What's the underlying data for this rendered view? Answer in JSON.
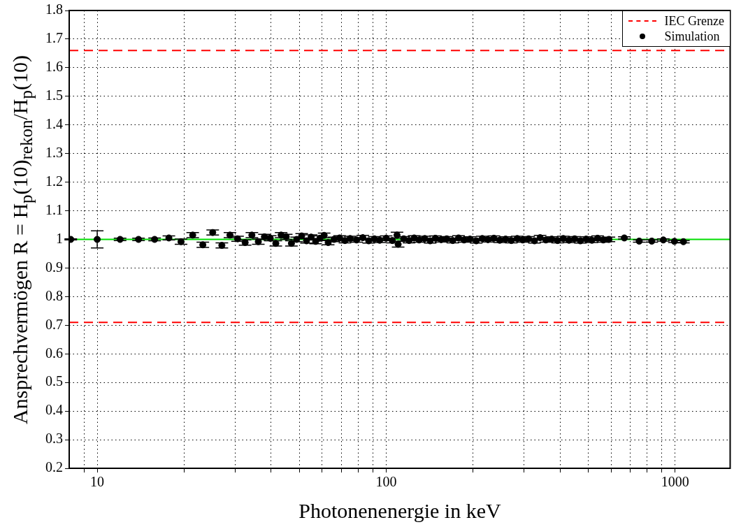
{
  "chart_data": {
    "type": "scatter",
    "xlabel": "Photonenenergie in keV",
    "ylabel": "Ansprechvermögen R = H$_{p}$(10)$_{rekon}$/H$_{p}$(10)",
    "log": "x",
    "grid": true,
    "legend": "top right",
    "marker": "circle",
    "xlim": [
      8,
      1550
    ],
    "xticks": [
      {
        "value": 9,
        "label": null
      },
      10,
      {
        "value": 20,
        "label": null
      },
      {
        "value": 30,
        "label": null
      },
      {
        "value": 40,
        "label": null
      },
      {
        "value": 50,
        "label": null
      },
      {
        "value": 60,
        "label": null
      },
      {
        "value": 70,
        "label": null
      },
      {
        "value": 80,
        "label": null
      },
      {
        "value": 90,
        "label": null
      },
      100,
      {
        "value": 200,
        "label": null
      },
      {
        "value": 300,
        "label": null
      },
      {
        "value": 400,
        "label": null
      },
      {
        "value": 500,
        "label": null
      },
      {
        "value": 600,
        "label": null
      },
      {
        "value": 700,
        "label": null
      },
      {
        "value": 800,
        "label": null
      },
      {
        "value": 900,
        "label": null
      },
      1000
    ],
    "ylim": [
      0.2,
      1.8
    ],
    "yticks": [
      0.2,
      0.3,
      0.4,
      0.5,
      0.6,
      0.7,
      0.8,
      0.9,
      1,
      1.1,
      1.2,
      1.3,
      1.4,
      1.5,
      1.6,
      1.7,
      1.8
    ],
    "ref_lines": [
      {
        "axis": "y",
        "value": 1.66,
        "label": "IEC Grenze",
        "color": "#ff0000",
        "line_style": "dashed"
      },
      {
        "axis": "y",
        "value": 0.71,
        "color": "#ff0000",
        "line_style": "dashed"
      },
      {
        "axis": "y",
        "value": 1,
        "color": "#00dd00",
        "line_style": "solid"
      }
    ],
    "series": [
      {
        "name": "Simulation",
        "color": "#000000",
        "x": [
          8.1,
          10,
          12,
          13.9,
          15.8,
          17.7,
          19.5,
          21.4,
          23.2,
          25.1,
          27,
          28.8,
          30.6,
          32.5,
          34.3,
          36.1,
          37.9,
          39.7,
          41.5,
          43.3,
          45.1,
          47,
          49,
          51,
          53,
          55,
          57,
          59,
          61,
          63,
          66,
          69,
          72,
          75,
          79,
          83,
          87,
          91,
          95,
          100,
          105,
          109,
          110,
          115,
          120,
          125,
          130,
          136,
          142,
          148,
          155,
          162,
          170,
          178,
          186,
          195,
          205,
          215,
          225,
          236,
          247,
          259,
          271,
          284,
          297,
          311,
          326,
          341,
          357,
          374,
          392,
          410,
          429,
          449,
          470,
          492,
          515,
          539,
          564,
          590,
          667,
          751,
          830,
          910,
          994,
          1068
        ],
        "values": [
          1,
          1,
          1,
          1,
          1,
          1.005,
          0.992,
          1.015,
          0.981,
          1.024,
          0.979,
          1.015,
          1.002,
          0.989,
          1.015,
          0.992,
          1.009,
          1.004,
          0.986,
          1.015,
          1.009,
          0.986,
          1,
          1.012,
          0.995,
          1.008,
          0.993,
          1.004,
          1.014,
          0.989,
          1,
          1.005,
          0.996,
          1.003,
          0.998,
          1.006,
          0.995,
          1.002,
          0.997,
          1.004,
          0.996,
          1.015,
          0.983,
          1.002,
          0.996,
          1.005,
          0.998,
          1.003,
          0.995,
          1.004,
          0.999,
          1.002,
          0.996,
          1.005,
          0.998,
          1.001,
          0.995,
          1.003,
          0.999,
          1.004,
          0.997,
          1.001,
          0.996,
          1.003,
          0.998,
          1.002,
          0.995,
          1.006,
          0.998,
          1.001,
          0.996,
          1.003,
          0.997,
          1.002,
          0.995,
          1.001,
          0.997,
          1.004,
          0.998,
          1,
          1.005,
          0.994,
          0.994,
          0.998,
          0.993,
          0.992
        ],
        "errors": [
          0.002,
          0.03,
          0.004,
          0.004,
          0.005,
          0.007,
          0.009,
          0.009,
          0.009,
          0.009,
          0.009,
          0.009,
          0.009,
          0.009,
          0.009,
          0.009,
          0.009,
          0.009,
          0.009,
          0.009,
          0.009,
          0.009,
          0.008,
          0.008,
          0.008,
          0.008,
          0.008,
          0.008,
          0.008,
          0.008,
          0.008,
          0.008,
          0.008,
          0.008,
          0.008,
          0.008,
          0.008,
          0.008,
          0.008,
          0.008,
          0.008,
          0.01,
          0.01,
          0.008,
          0.008,
          0.008,
          0.008,
          0.008,
          0.008,
          0.008,
          0.008,
          0.008,
          0.008,
          0.008,
          0.008,
          0.008,
          0.008,
          0.008,
          0.008,
          0.008,
          0.008,
          0.008,
          0.008,
          0.008,
          0.008,
          0.008,
          0.008,
          0.008,
          0.008,
          0.008,
          0.008,
          0.008,
          0.008,
          0.008,
          0.008,
          0.008,
          0.008,
          0.008,
          0.008,
          0.008,
          0.004,
          0.004,
          0.004,
          0.004,
          0.004,
          0.004
        ]
      }
    ]
  }
}
